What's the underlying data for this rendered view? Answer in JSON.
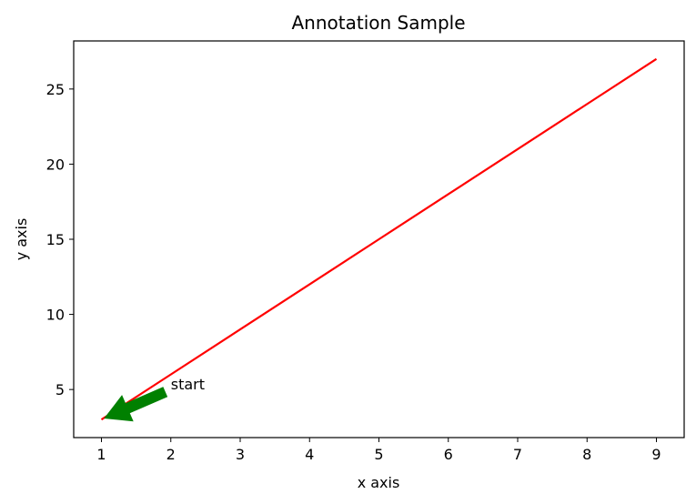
{
  "chart_data": {
    "type": "line",
    "title": "Annotation Sample",
    "xlabel": "x axis",
    "ylabel": "y axis",
    "xlim": [
      0.6,
      9.4
    ],
    "ylim": [
      1.8,
      28.2
    ],
    "xticks": [
      1,
      2,
      3,
      4,
      5,
      6,
      7,
      8,
      9
    ],
    "yticks": [
      5,
      10,
      15,
      20,
      25
    ],
    "grid": false,
    "legend": "none",
    "series": [
      {
        "x": [
          1,
          2,
          3,
          4,
          5,
          6,
          7,
          8,
          9
        ],
        "y": [
          3,
          6,
          9,
          12,
          15,
          18,
          21,
          24,
          27
        ],
        "color": "#ff0000"
      }
    ],
    "annotations": [
      {
        "text": "start",
        "xy": [
          1,
          3
        ],
        "xytext": [
          2,
          5
        ],
        "arrow_color": "#008000"
      }
    ]
  }
}
